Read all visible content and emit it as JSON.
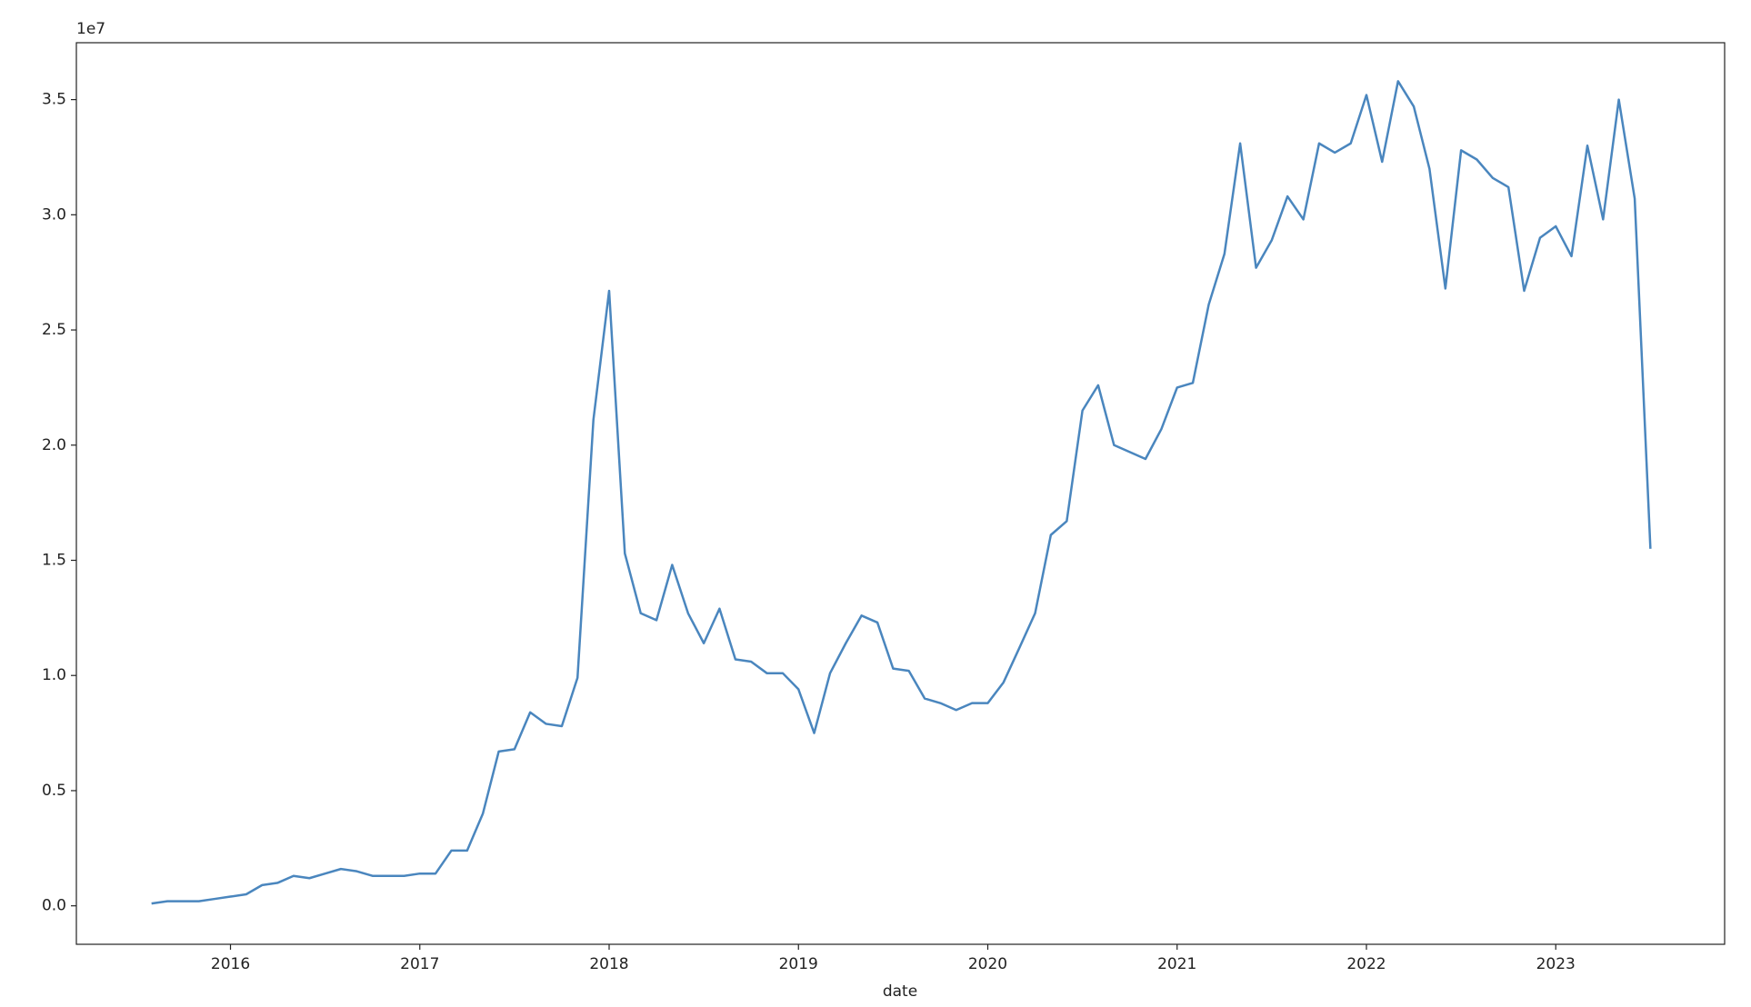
{
  "chart_data": {
    "type": "line",
    "x_label": "date",
    "y_offset_label": "1e7",
    "x": [
      2015.583,
      2015.667,
      2015.75,
      2015.833,
      2015.917,
      2016,
      2016.083,
      2016.167,
      2016.25,
      2016.333,
      2016.417,
      2016.5,
      2016.583,
      2016.667,
      2016.75,
      2016.833,
      2016.917,
      2017,
      2017.083,
      2017.167,
      2017.25,
      2017.333,
      2017.417,
      2017.5,
      2017.583,
      2017.667,
      2017.75,
      2017.833,
      2017.917,
      2018,
      2018.083,
      2018.167,
      2018.25,
      2018.333,
      2018.417,
      2018.5,
      2018.583,
      2018.667,
      2018.75,
      2018.833,
      2018.917,
      2019,
      2019.083,
      2019.167,
      2019.25,
      2019.333,
      2019.417,
      2019.5,
      2019.583,
      2019.667,
      2019.75,
      2019.833,
      2019.917,
      2020,
      2020.083,
      2020.167,
      2020.25,
      2020.333,
      2020.417,
      2020.5,
      2020.583,
      2020.667,
      2020.75,
      2020.833,
      2020.917,
      2021,
      2021.083,
      2021.167,
      2021.25,
      2021.333,
      2021.417,
      2021.5,
      2021.583,
      2021.667,
      2021.75,
      2021.833,
      2021.917,
      2022,
      2022.083,
      2022.167,
      2022.25,
      2022.333,
      2022.417,
      2022.5,
      2022.583,
      2022.667,
      2022.75,
      2022.833,
      2022.917,
      2023,
      2023.083,
      2023.167,
      2023.25,
      2023.333,
      2023.417,
      2023.5
    ],
    "series": [
      {
        "color": "#4a86be",
        "values": [
          0.01,
          0.02,
          0.02,
          0.02,
          0.03,
          0.04,
          0.05,
          0.09,
          0.1,
          0.13,
          0.12,
          0.14,
          0.16,
          0.15,
          0.13,
          0.13,
          0.13,
          0.14,
          0.14,
          0.24,
          0.24,
          0.4,
          0.67,
          0.68,
          0.84,
          0.79,
          0.78,
          0.99,
          2.11,
          2.67,
          1.53,
          1.27,
          1.24,
          1.48,
          1.27,
          1.14,
          1.29,
          1.07,
          1.06,
          1.01,
          1.01,
          0.94,
          0.75,
          1.01,
          1.14,
          1.26,
          1.23,
          1.03,
          1.02,
          0.9,
          0.88,
          0.85,
          0.88,
          0.88,
          0.97,
          1.12,
          1.27,
          1.61,
          1.67,
          2.15,
          2.26,
          2.0,
          1.97,
          1.94,
          2.07,
          2.25,
          2.27,
          2.61,
          2.83,
          3.31,
          2.77,
          2.89,
          3.08,
          2.98,
          3.31,
          3.27,
          3.31,
          3.52,
          3.23,
          3.58,
          3.47,
          3.2,
          2.68,
          3.28,
          3.24,
          3.16,
          3.12,
          2.67,
          2.9,
          2.95,
          2.82,
          3.3,
          2.98,
          3.5,
          3.07,
          1.55
        ]
      }
    ],
    "xlim": [
      2015.186,
      2023.892
    ],
    "xticks": [
      2016,
      2017,
      2018,
      2019,
      2020,
      2021,
      2022,
      2023
    ],
    "ylim": [
      -0.167,
      3.747
    ],
    "yticks": [
      {
        "value": 0,
        "label": "0.0"
      },
      {
        "value": 0.5,
        "label": "0.5"
      },
      {
        "value": 1,
        "label": "1.0"
      },
      {
        "value": 1.5,
        "label": "1.5"
      },
      {
        "value": 2,
        "label": "2.0"
      },
      {
        "value": 2.5,
        "label": "2.5"
      },
      {
        "value": 3,
        "label": "3.0"
      },
      {
        "value": 3.5,
        "label": "3.5"
      }
    ],
    "grid": false
  }
}
